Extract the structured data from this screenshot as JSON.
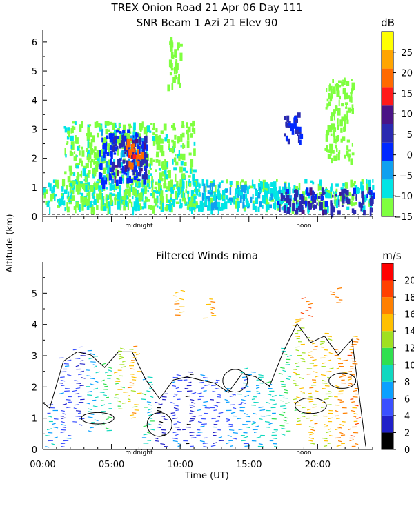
{
  "title_line1": "TREX Onion Road  21 Apr 06 Day 111",
  "title_line2": "SNR Beam 1 Azi  21 Elev 90",
  "ylabel": "Altitude (km)",
  "xlabel": "Time (UT)",
  "colors": {
    "snr_scale": [
      "#7fff3f",
      "#00e5e5",
      "#0fa0f0",
      "#0028ff",
      "#2a2ab0",
      "#4a1486",
      "#ff1a1a",
      "#ff6a00",
      "#ffa500",
      "#ffff00"
    ],
    "wind_scale": [
      "#000000",
      "#2020c8",
      "#3a50ff",
      "#0aa0ff",
      "#10d8c0",
      "#30e050",
      "#a0e020",
      "#ffc000",
      "#ff8000",
      "#ff4000",
      "#ff0000"
    ]
  },
  "chart_data": [
    {
      "type": "heatmap",
      "title": "SNR Beam 1 Azi  21 Elev 90",
      "xlabel": "Time (UT)",
      "ylabel": "Altitude (km)",
      "xlim": [
        0,
        24
      ],
      "ylim": [
        0,
        6.4
      ],
      "yticks": [
        0,
        1,
        2,
        3,
        4,
        5,
        6
      ],
      "x_markers": [
        {
          "x": 7.0,
          "label": "midnight"
        },
        {
          "x": 19.0,
          "label": "noon"
        }
      ],
      "colorbar": {
        "unit": "dB",
        "range": [
          -15,
          30
        ],
        "tick_values": [
          -15,
          -10,
          -5,
          0,
          5,
          10,
          15,
          20,
          25
        ],
        "tick_labels": [
          "−15",
          "−10",
          "−5",
          "0",
          "5",
          "10",
          "15",
          "20",
          "25"
        ]
      },
      "regions": [
        {
          "x": [
            0.0,
            24.0
          ],
          "alt": [
            0.3,
            1.3
          ],
          "snr": -10
        },
        {
          "x": [
            1.5,
            11.0
          ],
          "alt": [
            0.3,
            3.3
          ],
          "snr": -12
        },
        {
          "x": [
            4.0,
            7.5
          ],
          "alt": [
            1.2,
            3.0
          ],
          "snr": 0
        },
        {
          "x": [
            5.0,
            7.5
          ],
          "alt": [
            1.4,
            2.8
          ],
          "snr": 5
        },
        {
          "x": [
            6.0,
            7.2
          ],
          "alt": [
            1.8,
            2.7
          ],
          "snr": 18
        },
        {
          "x": [
            11.0,
            18.0
          ],
          "alt": [
            0.3,
            1.2
          ],
          "snr": -7
        },
        {
          "x": [
            17.0,
            24.0
          ],
          "alt": [
            0.2,
            1.0
          ],
          "snr": 5
        },
        {
          "x": [
            17.5,
            18.7
          ],
          "alt": [
            2.5,
            3.6
          ],
          "snr": 3
        },
        {
          "x": [
            9.0,
            10.0
          ],
          "alt": [
            4.5,
            6.2
          ],
          "snr": -14
        },
        {
          "x": [
            20.5,
            22.5
          ],
          "alt": [
            2.0,
            4.8
          ],
          "snr": -14
        }
      ]
    },
    {
      "type": "scatter",
      "title": "Filtered Winds nima",
      "xlabel": "Time (UT)",
      "ylabel": "Altitude (km)",
      "xlim": [
        0,
        24
      ],
      "ylim": [
        0,
        6.0
      ],
      "yticks": [
        0,
        1,
        2,
        3,
        4,
        5
      ],
      "xticks": [
        0,
        5,
        10,
        15,
        20
      ],
      "xtick_labels": [
        "00:00",
        "05:00",
        "10:00",
        "15:00",
        "20:00"
      ],
      "x_markers": [
        {
          "x": 7.0,
          "label": "midnight"
        },
        {
          "x": 19.0,
          "label": "noon"
        }
      ],
      "colorbar": {
        "unit": "m/s",
        "range": [
          0,
          22
        ],
        "tick_values": [
          0,
          2,
          4,
          6,
          8,
          10,
          12,
          14,
          16,
          18,
          20
        ],
        "tick_labels": [
          "0",
          "2",
          "4",
          "6",
          "8",
          "10",
          "12",
          "14",
          "16",
          "18",
          "20"
        ]
      },
      "wind_columns": [
        {
          "x": 0.5,
          "alt": [
            0.1,
            1.5
          ],
          "speed": 7
        },
        {
          "x": 1.5,
          "alt": [
            0.1,
            3.0
          ],
          "speed": 5
        },
        {
          "x": 2.5,
          "alt": [
            0.8,
            3.3
          ],
          "speed": 4
        },
        {
          "x": 3.5,
          "alt": [
            0.6,
            3.2
          ],
          "speed": 8
        },
        {
          "x": 4.5,
          "alt": [
            0.6,
            2.8
          ],
          "speed": 10
        },
        {
          "x": 5.5,
          "alt": [
            1.3,
            3.3
          ],
          "speed": 13
        },
        {
          "x": 6.5,
          "alt": [
            1.0,
            3.3
          ],
          "speed": 15
        },
        {
          "x": 7.5,
          "alt": [
            0.2,
            2.4
          ],
          "speed": 9
        },
        {
          "x": 8.5,
          "alt": [
            0.1,
            1.8
          ],
          "speed": 3
        },
        {
          "x": 9.5,
          "alt": [
            0.1,
            2.4
          ],
          "speed": 5
        },
        {
          "x": 10.5,
          "alt": [
            0.1,
            2.5
          ],
          "speed": 3
        },
        {
          "x": 11.5,
          "alt": [
            0.1,
            2.4
          ],
          "speed": 6
        },
        {
          "x": 12.5,
          "alt": [
            0.1,
            2.3
          ],
          "speed": 5
        },
        {
          "x": 13.5,
          "alt": [
            0.1,
            2.0
          ],
          "speed": 6
        },
        {
          "x": 14.5,
          "alt": [
            0.1,
            2.6
          ],
          "speed": 7
        },
        {
          "x": 15.5,
          "alt": [
            0.1,
            2.5
          ],
          "speed": 8
        },
        {
          "x": 16.5,
          "alt": [
            0.1,
            2.2
          ],
          "speed": 9
        },
        {
          "x": 17.5,
          "alt": [
            0.5,
            3.3
          ],
          "speed": 10
        },
        {
          "x": 18.5,
          "alt": [
            0.8,
            4.2
          ],
          "speed": 13
        },
        {
          "x": 19.5,
          "alt": [
            0.2,
            3.6
          ],
          "speed": 15
        },
        {
          "x": 20.5,
          "alt": [
            0.1,
            3.8
          ],
          "speed": 14
        },
        {
          "x": 21.5,
          "alt": [
            0.1,
            3.2
          ],
          "speed": 16
        },
        {
          "x": 22.5,
          "alt": [
            0.1,
            3.7
          ],
          "speed": 17
        },
        {
          "x": 9.8,
          "alt": [
            4.3,
            5.1
          ],
          "speed": 16
        },
        {
          "x": 12.0,
          "alt": [
            4.2,
            4.9
          ],
          "speed": 15
        },
        {
          "x": 19.0,
          "alt": [
            4.2,
            4.9
          ],
          "speed": 19
        },
        {
          "x": 21.2,
          "alt": [
            4.7,
            5.2
          ],
          "speed": 17
        }
      ]
    }
  ]
}
